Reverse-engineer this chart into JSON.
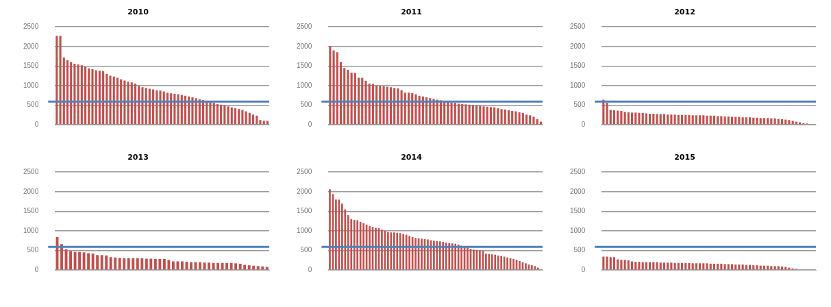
{
  "chart_data": [
    {
      "type": "bar",
      "title": "2010",
      "color": "#c0504d",
      "ylim": [
        0,
        2500
      ],
      "yticks": [
        0,
        500,
        1000,
        1500,
        2000,
        2500
      ],
      "grid": "y",
      "ref_lines": [
        {
          "axis": "y",
          "value": 590,
          "color": "#4f81bd"
        }
      ],
      "categories": [
        null,
        null,
        null,
        null,
        null,
        null,
        null,
        null,
        null,
        null,
        null,
        null,
        null,
        null,
        null,
        null,
        null,
        null,
        null,
        null,
        null,
        null,
        null,
        null,
        null,
        null,
        null,
        null,
        null,
        null,
        null,
        null,
        null,
        null,
        null,
        null,
        null,
        null,
        null,
        null,
        null,
        null,
        null,
        null,
        null,
        null,
        null,
        null,
        null,
        null,
        null,
        null,
        null,
        null,
        null,
        null,
        null,
        null,
        null,
        null
      ],
      "values": [
        2270,
        2270,
        1720,
        1650,
        1600,
        1560,
        1540,
        1520,
        1480,
        1440,
        1420,
        1390,
        1380,
        1370,
        1300,
        1250,
        1230,
        1200,
        1160,
        1130,
        1100,
        1080,
        1050,
        990,
        960,
        940,
        920,
        900,
        880,
        870,
        850,
        820,
        800,
        790,
        780,
        760,
        740,
        720,
        700,
        680,
        650,
        630,
        610,
        590,
        560,
        530,
        510,
        490,
        470,
        440,
        420,
        400,
        380,
        340,
        300,
        260,
        230,
        120,
        100,
        100
      ]
    },
    {
      "type": "bar",
      "title": "2011",
      "color": "#c0504d",
      "ylim": [
        0,
        2500
      ],
      "yticks": [
        0,
        500,
        1000,
        1500,
        2000,
        2500
      ],
      "grid": "y",
      "ref_lines": [
        {
          "axis": "y",
          "value": 590,
          "color": "#4f81bd"
        }
      ],
      "categories": [
        null,
        null,
        null,
        null,
        null,
        null,
        null,
        null,
        null,
        null,
        null,
        null,
        null,
        null,
        null,
        null,
        null,
        null,
        null,
        null,
        null,
        null,
        null,
        null,
        null,
        null,
        null,
        null,
        null,
        null,
        null,
        null,
        null,
        null,
        null,
        null,
        null,
        null,
        null,
        null,
        null,
        null,
        null,
        null,
        null,
        null,
        null,
        null,
        null,
        null,
        null,
        null,
        null,
        null,
        null,
        null,
        null,
        null,
        null,
        null
      ],
      "values": [
        2000,
        1900,
        1850,
        1600,
        1450,
        1400,
        1330,
        1320,
        1200,
        1200,
        1120,
        1050,
        1040,
        1000,
        990,
        980,
        970,
        960,
        940,
        930,
        880,
        820,
        820,
        810,
        780,
        740,
        720,
        700,
        680,
        660,
        640,
        620,
        600,
        590,
        570,
        560,
        540,
        530,
        520,
        510,
        500,
        490,
        480,
        470,
        460,
        450,
        440,
        420,
        400,
        390,
        370,
        350,
        340,
        320,
        300,
        260,
        240,
        200,
        140,
        80
      ]
    },
    {
      "type": "bar",
      "title": "2012",
      "color": "#c0504d",
      "ylim": [
        0,
        2500
      ],
      "yticks": [
        0,
        500,
        1000,
        1500,
        2000,
        2500
      ],
      "grid": "y",
      "ref_lines": [
        {
          "axis": "y",
          "value": 590,
          "color": "#4f81bd"
        }
      ],
      "categories": [
        null,
        null,
        null,
        null,
        null,
        null,
        null,
        null,
        null,
        null,
        null,
        null,
        null,
        null,
        null,
        null,
        null,
        null,
        null,
        null,
        null,
        null,
        null,
        null,
        null,
        null,
        null,
        null,
        null,
        null,
        null,
        null,
        null,
        null,
        null,
        null,
        null,
        null,
        null,
        null,
        null,
        null,
        null,
        null,
        null,
        null,
        null,
        null,
        null,
        null,
        null,
        null,
        null,
        null,
        null,
        null,
        null,
        null,
        null,
        null
      ],
      "values": [
        640,
        560,
        380,
        370,
        360,
        350,
        330,
        320,
        310,
        310,
        300,
        300,
        290,
        280,
        280,
        270,
        270,
        270,
        260,
        260,
        260,
        250,
        250,
        250,
        250,
        240,
        240,
        240,
        240,
        230,
        230,
        230,
        220,
        220,
        210,
        210,
        200,
        200,
        200,
        190,
        190,
        190,
        180,
        180,
        170,
        170,
        170,
        160,
        160,
        150,
        140,
        130,
        120,
        100,
        80,
        60,
        40,
        30,
        null,
        null
      ]
    },
    {
      "type": "bar",
      "title": "2013",
      "color": "#c0504d",
      "ylim": [
        0,
        2500
      ],
      "yticks": [
        0,
        500,
        1000,
        1500,
        2000,
        2500
      ],
      "grid": "y",
      "ref_lines": [
        {
          "axis": "y",
          "value": 590,
          "color": "#4f81bd"
        }
      ],
      "categories": [
        null,
        null,
        null,
        null,
        null,
        null,
        null,
        null,
        null,
        null,
        null,
        null,
        null,
        null,
        null,
        null,
        null,
        null,
        null,
        null,
        null,
        null,
        null,
        null,
        null,
        null,
        null,
        null,
        null,
        null,
        null,
        null,
        null,
        null,
        null,
        null,
        null,
        null,
        null,
        null,
        null,
        null,
        null,
        null,
        null,
        null,
        null,
        null
      ],
      "values": [
        840,
        660,
        530,
        480,
        460,
        460,
        450,
        430,
        420,
        380,
        380,
        370,
        330,
        320,
        310,
        300,
        300,
        300,
        300,
        300,
        290,
        290,
        280,
        280,
        280,
        260,
        220,
        220,
        220,
        210,
        200,
        200,
        200,
        190,
        190,
        180,
        180,
        180,
        180,
        180,
        170,
        160,
        130,
        120,
        110,
        100,
        90,
        80
      ]
    },
    {
      "type": "bar",
      "title": "2014",
      "color": "#c0504d",
      "ylim": [
        0,
        2500
      ],
      "yticks": [
        0,
        500,
        1000,
        1500,
        2000,
        2500
      ],
      "grid": "y",
      "ref_lines": [
        {
          "axis": "y",
          "value": 590,
          "color": "#4f81bd"
        }
      ],
      "categories": [
        null,
        null,
        null,
        null,
        null,
        null,
        null,
        null,
        null,
        null,
        null,
        null,
        null,
        null,
        null,
        null,
        null,
        null,
        null,
        null,
        null,
        null,
        null,
        null,
        null,
        null,
        null,
        null,
        null,
        null,
        null,
        null,
        null,
        null,
        null,
        null,
        null,
        null,
        null,
        null,
        null,
        null,
        null,
        null,
        null,
        null,
        null,
        null,
        null,
        null,
        null,
        null,
        null,
        null,
        null,
        null,
        null,
        null,
        null,
        null,
        null,
        null,
        null,
        null,
        null,
        null,
        null,
        null,
        null,
        null
      ],
      "values": [
        2060,
        1940,
        1800,
        1800,
        1700,
        1550,
        1400,
        1300,
        1280,
        1270,
        1230,
        1200,
        1160,
        1120,
        1100,
        1080,
        1070,
        1030,
        1000,
        970,
        960,
        960,
        950,
        940,
        920,
        900,
        870,
        840,
        820,
        810,
        800,
        790,
        780,
        760,
        750,
        740,
        730,
        720,
        700,
        690,
        680,
        670,
        650,
        620,
        610,
        580,
        540,
        520,
        510,
        500,
        490,
        420,
        410,
        400,
        390,
        370,
        360,
        340,
        320,
        300,
        280,
        260,
        230,
        200,
        170,
        140,
        120,
        100,
        60,
        10
      ]
    },
    {
      "type": "bar",
      "title": "2015",
      "color": "#c0504d",
      "ylim": [
        0,
        2500
      ],
      "yticks": [
        0,
        500,
        1000,
        1500,
        2000,
        2500
      ],
      "grid": "y",
      "ref_lines": [
        {
          "axis": "y",
          "value": 590,
          "color": "#4f81bd"
        }
      ],
      "categories": [
        null,
        null,
        null,
        null,
        null,
        null,
        null,
        null,
        null,
        null,
        null,
        null,
        null,
        null,
        null,
        null,
        null,
        null,
        null,
        null,
        null,
        null,
        null,
        null,
        null,
        null,
        null,
        null,
        null,
        null,
        null,
        null,
        null,
        null,
        null,
        null,
        null,
        null,
        null,
        null,
        null,
        null,
        null,
        null,
        null,
        null,
        null,
        null,
        null,
        null,
        null,
        null,
        null,
        null,
        null,
        null,
        null,
        null,
        null,
        null
      ],
      "values": [
        340,
        340,
        330,
        330,
        270,
        260,
        260,
        250,
        220,
        210,
        210,
        200,
        200,
        200,
        200,
        200,
        190,
        190,
        190,
        190,
        180,
        180,
        180,
        180,
        180,
        170,
        170,
        170,
        170,
        170,
        160,
        160,
        160,
        160,
        150,
        150,
        150,
        140,
        140,
        140,
        130,
        130,
        120,
        120,
        110,
        110,
        110,
        100,
        100,
        100,
        90,
        80,
        60,
        40,
        30,
        null,
        null,
        null,
        0,
        0
      ]
    }
  ]
}
